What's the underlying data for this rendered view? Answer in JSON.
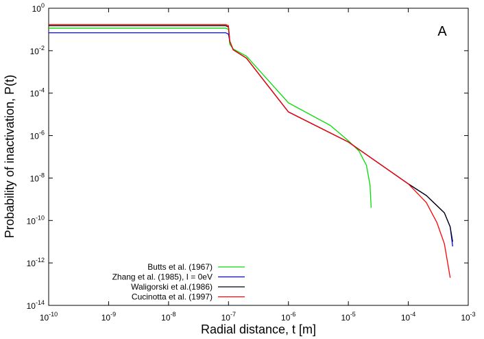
{
  "chart_data": {
    "type": "line",
    "panel_label": "A",
    "x_label": "Radial distance, t [m]",
    "y_label": "Probability of inactivation, P(t)",
    "x_log": true,
    "y_log": true,
    "legend": "bottom-left",
    "xlim": [
      1e-10,
      0.001
    ],
    "ylim": [
      1e-14,
      1
    ],
    "xticks": [
      {
        "value": 1e-10,
        "label": [
          "10",
          "-10"
        ]
      },
      {
        "value": 1e-09,
        "label": [
          "10",
          "-9"
        ]
      },
      {
        "value": 1e-08,
        "label": [
          "10",
          "-8"
        ]
      },
      {
        "value": 1e-07,
        "label": [
          "10",
          "-7"
        ]
      },
      {
        "value": 1e-06,
        "label": [
          "10",
          "-6"
        ]
      },
      {
        "value": 1e-05,
        "label": [
          "10",
          "-5"
        ]
      },
      {
        "value": 0.0001,
        "label": [
          "10",
          "-4"
        ]
      },
      {
        "value": 0.001,
        "label": [
          "10",
          "-3"
        ]
      }
    ],
    "yticks": [
      {
        "value": 1e-14,
        "label": [
          "10",
          "-14"
        ]
      },
      {
        "value": 1e-12,
        "label": [
          "10",
          "-12"
        ]
      },
      {
        "value": 1e-10,
        "label": [
          "10",
          "-10"
        ]
      },
      {
        "value": 1e-08,
        "label": [
          "10",
          "-8"
        ]
      },
      {
        "value": 1e-06,
        "label": [
          "10",
          "-6"
        ]
      },
      {
        "value": 0.0001,
        "label": [
          "10",
          "-4"
        ]
      },
      {
        "value": 0.01,
        "label": [
          "10",
          "-2"
        ]
      },
      {
        "value": 1,
        "label": [
          "10",
          "0"
        ]
      }
    ],
    "series": [
      {
        "name": "Butts et al. (1967)",
        "color": "#00dd00",
        "x": [
          1e-10,
          9e-08,
          1e-07,
          1.05e-07,
          1.2e-07,
          2e-07,
          1e-06,
          5e-06,
          1e-05,
          1.5e-05,
          2e-05,
          2.3e-05,
          2.4e-05
        ],
        "values": [
          0.115,
          0.115,
          0.1,
          0.02,
          0.012,
          0.0055,
          3.5e-05,
          3e-06,
          5.7e-07,
          1.9e-07,
          4e-08,
          4.6e-09,
          4e-10
        ]
      },
      {
        "name": "Zhang et al. (1985), I = 0eV",
        "color": "#0000ff",
        "x": [
          1e-10,
          9e-08,
          1e-07,
          1.05e-07,
          1.2e-07,
          2e-07,
          1e-06,
          1e-05,
          0.0001,
          0.0002,
          0.0004,
          0.0005,
          0.00055
        ],
        "values": [
          0.07,
          0.07,
          0.06,
          0.028,
          0.011,
          0.0044,
          1.3e-05,
          5e-07,
          5.3e-09,
          1.5e-09,
          2.3e-10,
          5e-11,
          6e-12
        ]
      },
      {
        "name": "Waligorski et al.(1986)",
        "color": "#000000",
        "x": [
          1e-10,
          9e-08,
          1e-07,
          1.05e-07,
          1.2e-07,
          2e-07,
          1e-06,
          1e-05,
          0.0001,
          0.0002,
          0.0004,
          0.0005,
          0.00055
        ],
        "values": [
          0.15,
          0.15,
          0.13,
          0.028,
          0.011,
          0.0044,
          1.3e-05,
          5e-07,
          5.3e-09,
          1.5e-09,
          2.3e-10,
          5e-11,
          1e-11
        ]
      },
      {
        "name": "Cucinotta et al. (1997)",
        "color": "#ff0000",
        "x": [
          1e-10,
          9e-08,
          1e-07,
          1.05e-07,
          1.2e-07,
          2e-07,
          1e-06,
          1e-05,
          0.0001,
          0.0002,
          0.0003,
          0.0004,
          0.0005
        ],
        "values": [
          0.17,
          0.17,
          0.15,
          0.028,
          0.011,
          0.0044,
          1.3e-05,
          5e-07,
          5.3e-09,
          7e-10,
          8e-11,
          8e-12,
          2e-13
        ]
      }
    ]
  }
}
